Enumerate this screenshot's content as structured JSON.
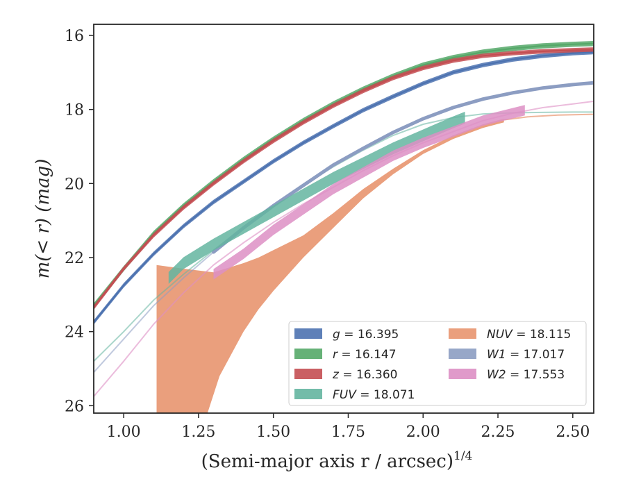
{
  "chart_data": {
    "type": "line",
    "xlabel": "(Semi-major axis r / arcsec)",
    "xlabel_superscript": "1/4",
    "ylabel": "m(< r) (mag)",
    "xlim": [
      0.9,
      2.57
    ],
    "ylim": [
      26.2,
      15.7
    ],
    "y_inverted": true,
    "x_ticks": [
      1.0,
      1.25,
      1.5,
      1.75,
      2.0,
      2.25,
      2.5
    ],
    "x_tick_labels": [
      "1.00",
      "1.25",
      "1.50",
      "1.75",
      "2.00",
      "2.25",
      "2.50"
    ],
    "y_ticks": [
      16,
      18,
      20,
      22,
      24,
      26
    ],
    "y_tick_labels": [
      "16",
      "18",
      "20",
      "22",
      "24",
      "26"
    ],
    "grid": false,
    "legend_position": "lower-right",
    "series": [
      {
        "name": "g",
        "total": "16.395",
        "color": "#4c72b0",
        "x": [
          0.9,
          1.0,
          1.1,
          1.2,
          1.3,
          1.4,
          1.5,
          1.6,
          1.7,
          1.8,
          1.9,
          2.0,
          2.1,
          2.2,
          2.3,
          2.4,
          2.5,
          2.57
        ],
        "y": [
          23.75,
          22.75,
          21.9,
          21.15,
          20.5,
          19.95,
          19.4,
          18.9,
          18.45,
          18.02,
          17.65,
          17.3,
          17.0,
          16.8,
          16.65,
          16.55,
          16.48,
          16.45
        ],
        "band_halfwidth": 0.06
      },
      {
        "name": "r",
        "total": "16.147",
        "color": "#55a868",
        "x": [
          0.9,
          1.0,
          1.1,
          1.2,
          1.3,
          1.4,
          1.5,
          1.6,
          1.7,
          1.8,
          1.9,
          2.0,
          2.1,
          2.2,
          2.3,
          2.4,
          2.5,
          2.57
        ],
        "y": [
          23.3,
          22.3,
          21.35,
          20.6,
          19.95,
          19.35,
          18.8,
          18.3,
          17.85,
          17.45,
          17.1,
          16.8,
          16.6,
          16.45,
          16.35,
          16.28,
          16.24,
          16.22
        ],
        "band_halfwidth": 0.07
      },
      {
        "name": "z",
        "total": "16.360",
        "color": "#c44e52",
        "x": [
          0.9,
          1.0,
          1.1,
          1.2,
          1.3,
          1.4,
          1.5,
          1.6,
          1.7,
          1.8,
          1.9,
          2.0,
          2.1,
          2.2,
          2.3,
          2.4,
          2.5,
          2.57
        ],
        "y": [
          23.35,
          22.3,
          21.4,
          20.65,
          20.0,
          19.4,
          18.85,
          18.35,
          17.9,
          17.5,
          17.15,
          16.88,
          16.68,
          16.55,
          16.48,
          16.43,
          16.4,
          16.38
        ],
        "band_halfwidth": 0.06
      },
      {
        "name": "FUV",
        "total": "18.071",
        "color": "#64b5a0",
        "x": [
          1.15,
          1.2,
          1.3,
          1.4,
          1.5,
          1.6,
          1.7,
          1.8,
          1.9,
          2.0,
          2.1,
          2.14
        ],
        "y": [
          22.55,
          22.15,
          21.65,
          21.2,
          20.75,
          20.3,
          19.85,
          19.45,
          19.05,
          18.7,
          18.35,
          18.22
        ],
        "band_halfwidth": 0.16,
        "thin_x": [
          0.9,
          1.0,
          1.1,
          1.2,
          1.3,
          1.4,
          1.5,
          1.6,
          1.7,
          1.8,
          1.9,
          2.0,
          2.1,
          2.2,
          2.3,
          2.4,
          2.5,
          2.57
        ],
        "thin_y": [
          24.8,
          24.0,
          23.15,
          22.45,
          21.8,
          21.2,
          20.6,
          20.05,
          19.55,
          19.1,
          18.7,
          18.4,
          18.22,
          18.12,
          18.09,
          18.08,
          18.07,
          18.07
        ]
      },
      {
        "name": "NUV",
        "total": "18.115",
        "color": "#e8956f",
        "upper_x": [
          1.11,
          1.2,
          1.3,
          1.4,
          1.45,
          1.5,
          1.6,
          1.7,
          1.8,
          1.9,
          2.0,
          2.1,
          2.2,
          2.27
        ],
        "upper_y": [
          22.2,
          22.3,
          22.4,
          22.15,
          22.0,
          21.8,
          21.4,
          20.8,
          20.15,
          19.6,
          19.1,
          18.7,
          18.4,
          18.25
        ],
        "lower_x": [
          1.11,
          1.2,
          1.28,
          1.32,
          1.4,
          1.45,
          1.5,
          1.6,
          1.7,
          1.8,
          1.9,
          2.0,
          2.1,
          2.2,
          2.27
        ],
        "lower_y": [
          26.2,
          26.2,
          26.2,
          25.2,
          24.0,
          23.4,
          22.9,
          22.0,
          21.2,
          20.4,
          19.75,
          19.2,
          18.8,
          18.5,
          18.35
        ],
        "thin_x": [
          2.27,
          2.35,
          2.45,
          2.57
        ],
        "thin_y": [
          18.28,
          18.2,
          18.15,
          18.13
        ]
      },
      {
        "name": "W1",
        "total": "17.017",
        "color": "#8c9dc2",
        "x": [
          0.9,
          1.0,
          1.1,
          1.2,
          1.3,
          1.4,
          1.5,
          1.6,
          1.7,
          1.8,
          1.9,
          2.0,
          2.1,
          2.2,
          2.3,
          2.4,
          2.5,
          2.57
        ],
        "y": [
          25.1,
          24.2,
          23.3,
          22.55,
          21.85,
          21.2,
          20.6,
          20.05,
          19.5,
          19.05,
          18.62,
          18.25,
          17.95,
          17.72,
          17.55,
          17.42,
          17.33,
          17.28
        ],
        "thick_from": 1.3,
        "thick_to": 2.57
      },
      {
        "name": "W2",
        "total": "17.553",
        "color": "#dd8fc4",
        "x": [
          1.3,
          1.4,
          1.5,
          1.6,
          1.7,
          1.8,
          1.9,
          2.0,
          2.1,
          2.2,
          2.3,
          2.34
        ],
        "y": [
          22.45,
          21.9,
          21.25,
          20.7,
          20.15,
          19.7,
          19.25,
          18.9,
          18.6,
          18.3,
          18.1,
          18.02
        ],
        "band_halfwidth": 0.14,
        "thin_x": [
          0.9,
          1.0,
          1.1,
          1.2,
          1.3,
          1.4,
          1.5,
          1.6,
          1.7,
          1.8,
          1.9,
          2.0,
          2.1,
          2.2,
          2.3,
          2.4,
          2.5,
          2.57
        ],
        "thin_y": [
          25.75,
          24.8,
          23.8,
          22.95,
          22.2,
          21.6,
          21.05,
          20.55,
          20.1,
          19.65,
          19.25,
          18.9,
          18.6,
          18.3,
          18.1,
          17.95,
          17.85,
          17.78
        ]
      }
    ],
    "legend": [
      {
        "label": "g",
        "value": "16.395",
        "color": "#4c72b0"
      },
      {
        "label": "r",
        "value": "16.147",
        "color": "#55a868"
      },
      {
        "label": "z",
        "value": "16.360",
        "color": "#c44e52"
      },
      {
        "label": "FUV",
        "value": "18.071",
        "color": "#64b5a0"
      },
      {
        "label": "NUV",
        "value": "18.115",
        "color": "#e8956f"
      },
      {
        "label": "W1",
        "value": "17.017",
        "color": "#8c9dc2"
      },
      {
        "label": "W2",
        "value": "17.553",
        "color": "#dd8fc4"
      }
    ]
  }
}
